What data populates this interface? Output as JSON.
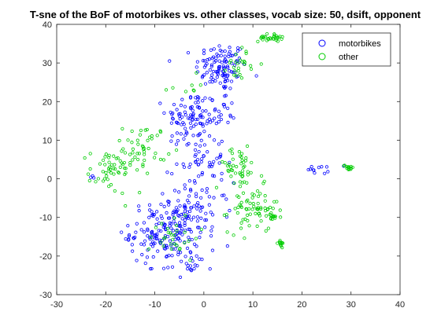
{
  "chart_data": {
    "type": "scatter",
    "title": "T-sne of the BoF of motorbikes vs. other classes, vocab size: 50, dsift, opponent",
    "xlabel": "",
    "ylabel": "",
    "xlim": [
      -30,
      40
    ],
    "ylim": [
      -30,
      40
    ],
    "x_ticks": [
      "-30",
      "-20",
      "-10",
      "0",
      "10",
      "20",
      "30",
      "40"
    ],
    "y_ticks": [
      "-30",
      "-20",
      "-10",
      "0",
      "10",
      "20",
      "30",
      "40"
    ],
    "grid": false,
    "legend_position": "top-right",
    "series": [
      {
        "name": "motorbikes",
        "color": "#0000ff",
        "marker": "circle",
        "clusters": [
          {
            "cx": 3.5,
            "cy": 29,
            "sx": 2.6,
            "sy": 3.2,
            "n": 110
          },
          {
            "cx": -2.5,
            "cy": 16,
            "sx": 2.6,
            "sy": 3.5,
            "n": 90
          },
          {
            "cx": 4,
            "cy": 17,
            "sx": 1.2,
            "sy": 3.0,
            "n": 20
          },
          {
            "cx": -1,
            "cy": 5,
            "sx": 2.6,
            "sy": 4.0,
            "n": 55
          },
          {
            "cx": -8,
            "cy": -14,
            "sx": 3.5,
            "sy": 4.0,
            "n": 160
          },
          {
            "cx": -1.5,
            "cy": -9,
            "sx": 3.5,
            "sy": 4.0,
            "n": 80
          },
          {
            "cx": -3,
            "cy": -22,
            "sx": 2.5,
            "sy": 1.2,
            "n": 20
          },
          {
            "cx": 24,
            "cy": 2.5,
            "sx": 1.5,
            "sy": 0.6,
            "n": 12
          },
          {
            "cx": -23,
            "cy": 0.5,
            "sx": 0.3,
            "sy": 0.3,
            "n": 3
          }
        ]
      },
      {
        "name": "other",
        "color": "#00cc00",
        "marker": "circle",
        "clusters": [
          {
            "cx": 13.5,
            "cy": 36.5,
            "sx": 1.2,
            "sy": 0.5,
            "n": 30
          },
          {
            "cx": 7.5,
            "cy": 30,
            "sx": 1.4,
            "sy": 2.0,
            "n": 25
          },
          {
            "cx": -12,
            "cy": 8,
            "sx": 2.2,
            "sy": 3.0,
            "n": 45
          },
          {
            "cx": -19,
            "cy": 2,
            "sx": 2.2,
            "sy": 3.0,
            "n": 55
          },
          {
            "cx": 7,
            "cy": 3,
            "sx": 2.5,
            "sy": 2.5,
            "n": 45
          },
          {
            "cx": 10,
            "cy": -8,
            "sx": 2.5,
            "sy": 3.0,
            "n": 70
          },
          {
            "cx": 14,
            "cy": -10,
            "sx": 0.5,
            "sy": 0.4,
            "n": 12
          },
          {
            "cx": 15.5,
            "cy": -16.5,
            "sx": 0.5,
            "sy": 0.5,
            "n": 14
          },
          {
            "cx": 29.5,
            "cy": 3,
            "sx": 0.5,
            "sy": 0.4,
            "n": 14
          },
          {
            "cx": -6,
            "cy": -15,
            "sx": 2.5,
            "sy": 3.0,
            "n": 30
          },
          {
            "cx": -4,
            "cy": 24,
            "sx": 1.5,
            "sy": 1.0,
            "n": 8
          }
        ]
      }
    ]
  }
}
